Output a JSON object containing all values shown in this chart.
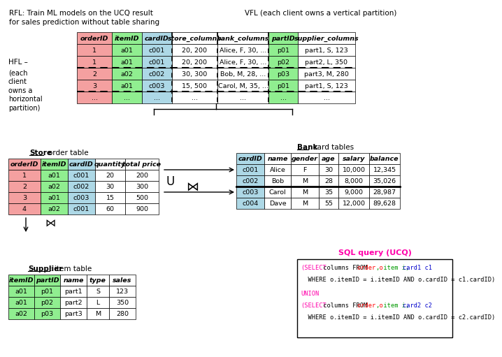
{
  "title_rfl": "RFL: Train ML models on the UCQ result\nfor sales prediction without table sharing",
  "title_vfl": "VFL (each client owns a vertical partition)",
  "bg_color": "#ffffff",
  "main_table": {
    "headers": [
      "orderID",
      "itemID",
      "cardID",
      "store_columns",
      "bank_columns",
      "partID",
      "supplier_columns"
    ],
    "header_colors": [
      "#f4a0a0",
      "#90ee90",
      "#add8e6",
      "#ffffff",
      "#ffffff",
      "#90ee90",
      "#ffffff"
    ],
    "rows": [
      [
        "1",
        "a01",
        "c001",
        "20, 200",
        "Alice, F, 30, ...",
        "p01",
        "part1, S, 123"
      ],
      [
        "1",
        "a01",
        "c001",
        "20, 200",
        "Alice, F, 30, ...",
        "p02",
        "part2, L, 350"
      ],
      [
        "2",
        "a02",
        "c002",
        "30, 300",
        "Bob, M, 28, ...",
        "p03",
        "part3, M, 280"
      ],
      [
        "3",
        "a01",
        "c003",
        "15, 500",
        "Carol, M, 35, ...",
        "p01",
        "part1, S, 123"
      ],
      [
        "...",
        "...",
        "...",
        "...",
        "...",
        "...",
        "..."
      ]
    ],
    "row_colors": [
      [
        "#f4a0a0",
        "#90ee90",
        "#add8e6",
        "#ffffff",
        "#ffffff",
        "#90ee90",
        "#ffffff"
      ],
      [
        "#f4a0a0",
        "#90ee90",
        "#add8e6",
        "#ffffff",
        "#ffffff",
        "#90ee90",
        "#ffffff"
      ],
      [
        "#f4a0a0",
        "#90ee90",
        "#add8e6",
        "#ffffff",
        "#ffffff",
        "#90ee90",
        "#ffffff"
      ],
      [
        "#f4a0a0",
        "#90ee90",
        "#add8e6",
        "#ffffff",
        "#ffffff",
        "#90ee90",
        "#ffffff"
      ],
      [
        "#f4a0a0",
        "#90ee90",
        "#add8e6",
        "#ffffff",
        "#ffffff",
        "#90ee90",
        "#ffffff"
      ]
    ]
  },
  "store_order_table": {
    "title_prefix": "Store",
    "title_suffix": ": order table",
    "headers": [
      "orderID",
      "itemID",
      "cardID",
      "quantity",
      "total price"
    ],
    "header_colors": [
      "#f4a0a0",
      "#90ee90",
      "#add8e6",
      "#ffffff",
      "#ffffff"
    ],
    "rows": [
      [
        "1",
        "a01",
        "c001",
        "20",
        "200"
      ],
      [
        "2",
        "a02",
        "c002",
        "30",
        "300"
      ],
      [
        "3",
        "a01",
        "c003",
        "15",
        "500"
      ],
      [
        "4",
        "a02",
        "c001",
        "60",
        "900"
      ]
    ],
    "row_colors": [
      [
        "#f4a0a0",
        "#90ee90",
        "#add8e6",
        "#ffffff",
        "#ffffff"
      ],
      [
        "#f4a0a0",
        "#90ee90",
        "#add8e6",
        "#ffffff",
        "#ffffff"
      ],
      [
        "#f4a0a0",
        "#90ee90",
        "#add8e6",
        "#ffffff",
        "#ffffff"
      ],
      [
        "#f4a0a0",
        "#90ee90",
        "#add8e6",
        "#ffffff",
        "#ffffff"
      ]
    ]
  },
  "bank_card_table": {
    "title_prefix": "Bank",
    "title_suffix": ": card tables",
    "headers": [
      "cardID",
      "name",
      "gender",
      "age",
      "salary",
      "balance"
    ],
    "header_colors": [
      "#add8e6",
      "#ffffff",
      "#ffffff",
      "#ffffff",
      "#ffffff",
      "#ffffff"
    ],
    "rows": [
      [
        "c001",
        "Alice",
        "F",
        "30",
        "10,000",
        "12,345"
      ],
      [
        "c002",
        "Bob",
        "M",
        "28",
        "8,000",
        "35,026"
      ],
      [
        "c003",
        "Carol",
        "M",
        "35",
        "9,000",
        "28,987"
      ],
      [
        "c004",
        "Dave",
        "M",
        "55",
        "12,000",
        "89,628"
      ]
    ],
    "row_colors": [
      [
        "#add8e6",
        "#ffffff",
        "#ffffff",
        "#ffffff",
        "#ffffff",
        "#ffffff"
      ],
      [
        "#add8e6",
        "#ffffff",
        "#ffffff",
        "#ffffff",
        "#ffffff",
        "#ffffff"
      ],
      [
        "#add8e6",
        "#ffffff",
        "#ffffff",
        "#ffffff",
        "#ffffff",
        "#ffffff"
      ],
      [
        "#add8e6",
        "#ffffff",
        "#ffffff",
        "#ffffff",
        "#ffffff",
        "#ffffff"
      ]
    ]
  },
  "supplier_item_table": {
    "title_prefix": "Supplier",
    "title_suffix": ": item table",
    "headers": [
      "itemID",
      "partID",
      "name",
      "type",
      "sales"
    ],
    "header_colors": [
      "#90ee90",
      "#90ee90",
      "#ffffff",
      "#ffffff",
      "#ffffff"
    ],
    "rows": [
      [
        "a01",
        "p01",
        "part1",
        "S",
        "123"
      ],
      [
        "a01",
        "p02",
        "part2",
        "L",
        "350"
      ],
      [
        "a02",
        "p03",
        "part3",
        "M",
        "280"
      ]
    ],
    "row_colors": [
      [
        "#90ee90",
        "#90ee90",
        "#ffffff",
        "#ffffff",
        "#ffffff"
      ],
      [
        "#90ee90",
        "#90ee90",
        "#ffffff",
        "#ffffff",
        "#ffffff"
      ],
      [
        "#90ee90",
        "#90ee90",
        "#ffffff",
        "#ffffff",
        "#ffffff"
      ]
    ]
  },
  "sql_title": "SQL query (UCQ)",
  "sql_title_color": "#ff00aa",
  "sql_line1_parts": [
    [
      "(SELECT",
      "#ff00aa"
    ],
    [
      " columns FROM ",
      "#000000"
    ],
    [
      "order o",
      "#ff0000"
    ],
    [
      ", item i, ",
      "#009900"
    ],
    [
      "card1 c1",
      "#0000cc"
    ]
  ],
  "sql_line2": "  WHERE o.itemID = i.itemID AND o.cardID = c1.cardID)",
  "sql_line3": "UNION",
  "sql_line4_parts": [
    [
      "(SELECT",
      "#ff00aa"
    ],
    [
      " columns FROM ",
      "#000000"
    ],
    [
      "order o",
      "#ff0000"
    ],
    [
      ", item i, ",
      "#009900"
    ],
    [
      "card2 c2",
      "#0000cc"
    ]
  ],
  "sql_line5": "  WHERE o.itemID = i.itemID AND o.cardID = c2.cardID)"
}
